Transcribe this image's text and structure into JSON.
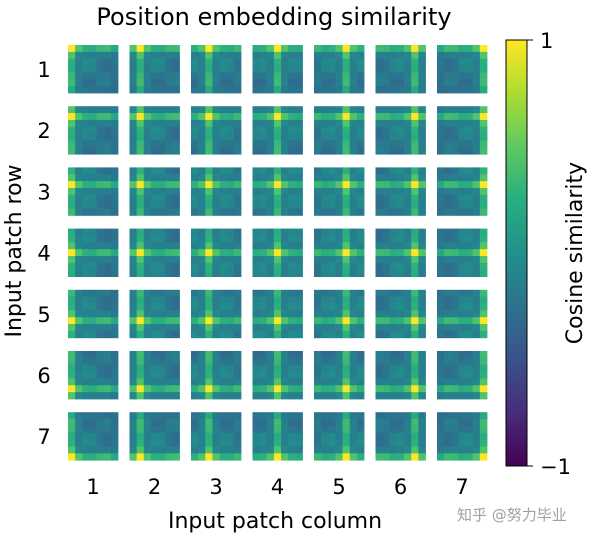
{
  "chart_data": {
    "type": "heatmap",
    "title": "Position embedding similarity",
    "xlabel": "Input patch column",
    "ylabel": "Input patch row",
    "row_ticks": [
      "1",
      "2",
      "3",
      "4",
      "5",
      "6",
      "7"
    ],
    "col_ticks": [
      "1",
      "2",
      "3",
      "4",
      "5",
      "6",
      "7"
    ],
    "grid": {
      "rows": 7,
      "cols": 7,
      "cells_per_patch": 7
    },
    "colormap": "viridis",
    "colorbar": {
      "label": "Cosine similarity",
      "min": -1,
      "max": 1,
      "tick_labels": [
        "1",
        "−1"
      ]
    },
    "similarity_pattern": {
      "self_value": 1.0,
      "same_row_or_col_value": 0.45,
      "base_value": -0.05,
      "decay_per_step": 0.04
    }
  },
  "watermark": "知乎 @努力毕业"
}
